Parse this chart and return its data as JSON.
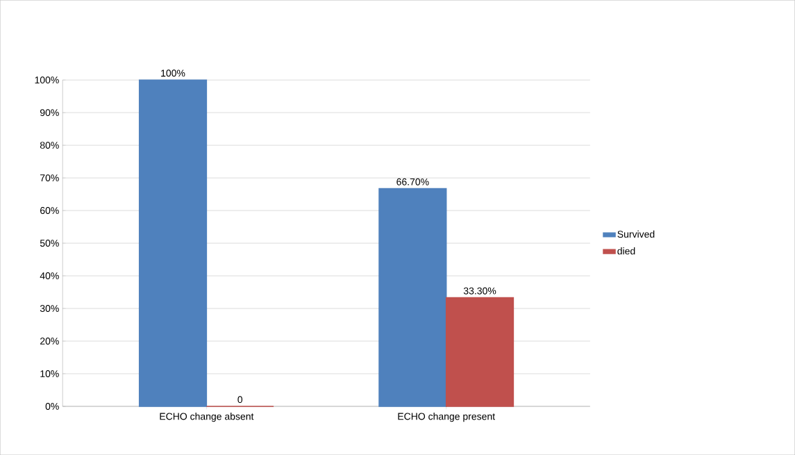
{
  "chart_data": {
    "type": "bar",
    "categories": [
      "ECHO change absent",
      "ECHO change present"
    ],
    "series": [
      {
        "name": "Survived",
        "color": "#4f81bd",
        "values": [
          100,
          66.7
        ],
        "value_labels": [
          "100%",
          "66.70%"
        ]
      },
      {
        "name": "died",
        "color": "#c0504d",
        "values": [
          0,
          33.3
        ],
        "value_labels": [
          "0",
          "33.30%"
        ]
      }
    ],
    "ylim": [
      0,
      100
    ],
    "yticks": [
      {
        "value": 0,
        "label": "0%"
      },
      {
        "value": 10,
        "label": "10%"
      },
      {
        "value": 20,
        "label": "20%"
      },
      {
        "value": 30,
        "label": "30%"
      },
      {
        "value": 40,
        "label": "40%"
      },
      {
        "value": 50,
        "label": "50%"
      },
      {
        "value": 60,
        "label": "60%"
      },
      {
        "value": 70,
        "label": "70%"
      },
      {
        "value": 80,
        "label": "80%"
      },
      {
        "value": 90,
        "label": "90%"
      },
      {
        "value": 100,
        "label": "100%"
      }
    ],
    "grid": "y",
    "legend": "right"
  }
}
